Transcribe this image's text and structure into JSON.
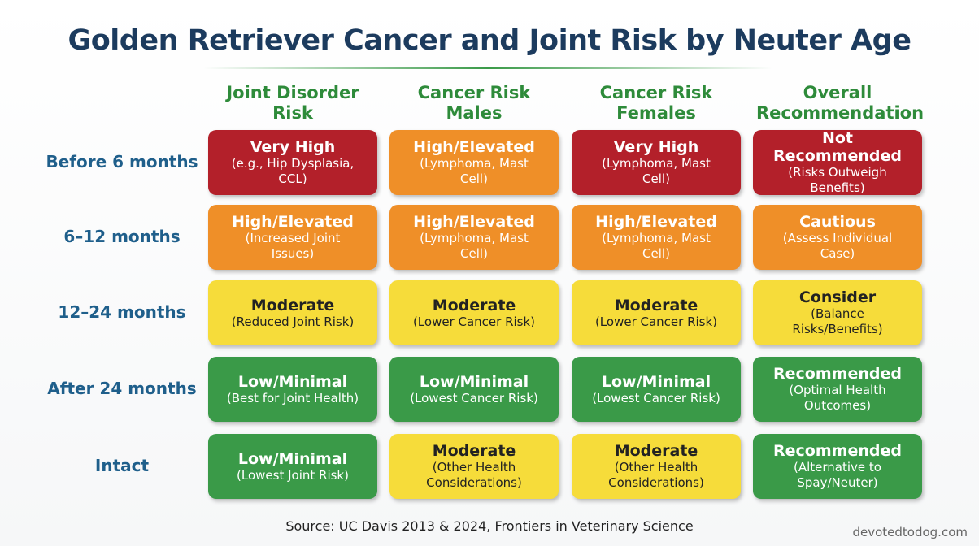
{
  "title": "Golden Retriever Cancer and Joint Risk by Neuter Age",
  "columns": [
    "Joint Disorder Risk",
    "Cancer Risk Males",
    "Cancer Risk Females",
    "Overall Recommendation"
  ],
  "rows": [
    {
      "label": "Before 6 months",
      "cells": [
        {
          "title": "Very High",
          "note": "(e.g., Hip Dysplasia, CCL)",
          "color": "#b3202a"
        },
        {
          "title": "High/Elevated",
          "note": "(Lymphoma, Mast Cell)",
          "color": "#ef8f28"
        },
        {
          "title": "Very High",
          "note": "(Lymphoma, Mast Cell)",
          "color": "#b3202a"
        },
        {
          "title": "Not Recommended",
          "note": "(Risks Outweigh Benefits)",
          "color": "#b3202a"
        }
      ]
    },
    {
      "label": "6–12 months",
      "cells": [
        {
          "title": "High/Elevated",
          "note": "(Increased Joint Issues)",
          "color": "#ef8f28"
        },
        {
          "title": "High/Elevated",
          "note": "(Lymphoma, Mast Cell)",
          "color": "#ef8f28"
        },
        {
          "title": "High/Elevated",
          "note": "(Lymphoma, Mast Cell)",
          "color": "#ef8f28"
        },
        {
          "title": "Cautious",
          "note": "(Assess Individual Case)",
          "color": "#ef8f28"
        }
      ]
    },
    {
      "label": "12–24 months",
      "cells": [
        {
          "title": "Moderate",
          "note": "(Reduced Joint Risk)",
          "color": "#f6dc3a"
        },
        {
          "title": "Moderate",
          "note": "(Lower Cancer Risk)",
          "color": "#f6dc3a"
        },
        {
          "title": "Moderate",
          "note": "(Lower Cancer Risk)",
          "color": "#f6dc3a"
        },
        {
          "title": "Consider",
          "note": "(Balance Risks/Benefits)",
          "color": "#f6dc3a"
        }
      ]
    },
    {
      "label": "After 24 months",
      "cells": [
        {
          "title": "Low/Minimal",
          "note": "(Best for Joint Health)",
          "color": "#3a9a48"
        },
        {
          "title": "Low/Minimal",
          "note": "(Lowest Cancer Risk)",
          "color": "#3a9a48"
        },
        {
          "title": "Low/Minimal",
          "note": "(Lowest Cancer Risk)",
          "color": "#3a9a48"
        },
        {
          "title": "Recommended",
          "note": "(Optimal Health Outcomes)",
          "color": "#3a9a48"
        }
      ]
    },
    {
      "label": "Intact",
      "cells": [
        {
          "title": "Low/Minimal",
          "note": "(Lowest Joint Risk)",
          "color": "#3a9a48"
        },
        {
          "title": "Moderate",
          "note": "(Other Health Considerations)",
          "color": "#f6dc3a"
        },
        {
          "title": "Moderate",
          "note": "(Other Health Considerations)",
          "color": "#f6dc3a"
        },
        {
          "title": "Recommended",
          "note": "(Alternative to Spay/Neuter)",
          "color": "#3a9a48"
        }
      ]
    }
  ],
  "source": "Source: UC Davis 2013 & 2024, Frontiers in Veterinary Science",
  "watermark": "devotedtodog.com"
}
